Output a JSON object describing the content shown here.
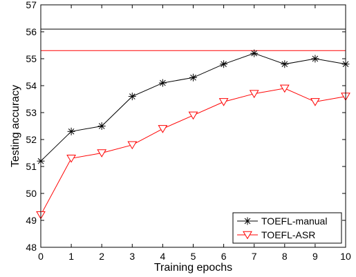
{
  "chart_data": {
    "type": "line",
    "xlabel": "Training epochs",
    "ylabel": "Testing accuracy",
    "xlim": [
      0,
      10
    ],
    "ylim": [
      48,
      57
    ],
    "x": [
      0,
      1,
      2,
      3,
      4,
      5,
      6,
      7,
      8,
      9,
      10
    ],
    "xticks": [
      "0",
      "1",
      "2",
      "3",
      "4",
      "5",
      "6",
      "7",
      "8",
      "9",
      "10"
    ],
    "yticks": [
      "48",
      "49",
      "50",
      "51",
      "52",
      "53",
      "54",
      "55",
      "56",
      "57"
    ],
    "series": [
      {
        "name": "TOEFL-manual",
        "color": "#000000",
        "marker": "asterisk",
        "values": [
          51.2,
          52.3,
          52.5,
          53.6,
          54.1,
          54.3,
          54.8,
          55.2,
          54.8,
          55.0,
          54.8
        ]
      },
      {
        "name": "TOEFL-ASR",
        "color": "#ff0000",
        "marker": "triangle-down",
        "values": [
          49.2,
          51.3,
          51.5,
          51.8,
          52.4,
          52.9,
          53.4,
          53.7,
          53.9,
          53.4,
          53.6
        ]
      }
    ],
    "reference_lines": [
      {
        "value": 56.1,
        "color": "#000000"
      },
      {
        "value": 55.3,
        "color": "#ff0000"
      }
    ],
    "grid": false,
    "legend": "bottom-right"
  }
}
